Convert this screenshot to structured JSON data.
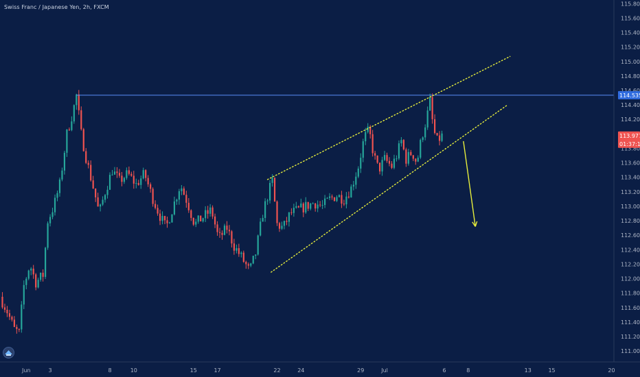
{
  "header": {
    "title": "Swiss Franc / Japanese Yen, 2h, FXCM"
  },
  "colors": {
    "background": "#0b1e45",
    "bull": "#26a69a",
    "bear": "#ef5350",
    "resistance": "#5b8ff9",
    "trendline": "#e8ef3c",
    "arrow": "#e8ef3c",
    "price_tag": "#ef5350",
    "level_tag": "#2f6bde"
  },
  "icons": {
    "logo": "tradingview-logo-icon"
  },
  "chart_data": {
    "type": "candlestick",
    "ylim": [
      110.85,
      115.85
    ],
    "grid": false,
    "y_ticks": [
      "115.800",
      "115.600",
      "115.400",
      "115.200",
      "115.000",
      "114.800",
      "114.600",
      "114.400",
      "114.200",
      "114.000",
      "113.800",
      "113.600",
      "113.400",
      "113.200",
      "113.000",
      "112.800",
      "112.600",
      "112.400",
      "112.200",
      "112.000",
      "111.800",
      "111.600",
      "111.400",
      "111.200",
      "111.000"
    ],
    "x_ticks": [
      {
        "label": "Jun",
        "day": 1
      },
      {
        "label": "3",
        "day": 3
      },
      {
        "label": "8",
        "day": 8
      },
      {
        "label": "10",
        "day": 10
      },
      {
        "label": "15",
        "day": 15
      },
      {
        "label": "17",
        "day": 17
      },
      {
        "label": "22",
        "day": 22
      },
      {
        "label": "24",
        "day": 24
      },
      {
        "label": "29",
        "day": 29
      },
      {
        "label": "Jul",
        "day": 31
      },
      {
        "label": "6",
        "day": 36
      },
      {
        "label": "8",
        "day": 38
      },
      {
        "label": "13",
        "day": 43
      },
      {
        "label": "15",
        "day": 45
      },
      {
        "label": "20",
        "day": 50
      }
    ],
    "x_range_days": [
      -1.2,
      50.2
    ],
    "price_path": [
      [
        -1.2,
        111.75
      ],
      [
        -0.6,
        111.55
      ],
      [
        0.0,
        111.3
      ],
      [
        0.4,
        111.25
      ],
      [
        0.8,
        111.9
      ],
      [
        1.3,
        112.2
      ],
      [
        1.8,
        111.95
      ],
      [
        2.4,
        112.05
      ],
      [
        2.8,
        112.8
      ],
      [
        3.3,
        113.0
      ],
      [
        3.8,
        113.3
      ],
      [
        4.4,
        114.0
      ],
      [
        4.9,
        114.3
      ],
      [
        5.2,
        114.53
      ],
      [
        5.6,
        114.0
      ],
      [
        6.1,
        113.6
      ],
      [
        6.7,
        113.2
      ],
      [
        7.1,
        112.9
      ],
      [
        7.6,
        113.2
      ],
      [
        8.2,
        113.5
      ],
      [
        8.8,
        113.35
      ],
      [
        9.5,
        113.45
      ],
      [
        10.2,
        113.3
      ],
      [
        10.9,
        113.45
      ],
      [
        11.5,
        113.15
      ],
      [
        12.1,
        112.9
      ],
      [
        12.7,
        112.7
      ],
      [
        13.3,
        113.0
      ],
      [
        13.9,
        113.3
      ],
      [
        14.5,
        113.05
      ],
      [
        15.1,
        112.75
      ],
      [
        15.8,
        112.85
      ],
      [
        16.5,
        112.95
      ],
      [
        17.1,
        112.55
      ],
      [
        17.8,
        112.7
      ],
      [
        18.4,
        112.45
      ],
      [
        19.0,
        112.3
      ],
      [
        19.7,
        112.1
      ],
      [
        20.2,
        112.35
      ],
      [
        20.8,
        112.9
      ],
      [
        21.3,
        113.2
      ],
      [
        21.6,
        113.35
      ],
      [
        22.0,
        112.75
      ],
      [
        22.5,
        112.7
      ],
      [
        23.1,
        112.9
      ],
      [
        23.8,
        112.95
      ],
      [
        24.4,
        113.0
      ],
      [
        25.1,
        113.05
      ],
      [
        25.8,
        113.0
      ],
      [
        26.4,
        113.1
      ],
      [
        27.0,
        113.15
      ],
      [
        27.6,
        113.1
      ],
      [
        28.2,
        113.25
      ],
      [
        28.8,
        113.55
      ],
      [
        29.3,
        113.95
      ],
      [
        29.7,
        114.05
      ],
      [
        30.1,
        113.7
      ],
      [
        30.5,
        113.5
      ],
      [
        31.0,
        113.65
      ],
      [
        31.6,
        113.55
      ],
      [
        32.0,
        113.7
      ],
      [
        32.4,
        113.9
      ],
      [
        32.8,
        113.65
      ],
      [
        33.3,
        113.75
      ],
      [
        33.7,
        113.6
      ],
      [
        34.1,
        113.95
      ],
      [
        34.5,
        114.2
      ],
      [
        34.8,
        114.45
      ],
      [
        35.1,
        114.05
      ],
      [
        35.4,
        113.9
      ],
      [
        35.8,
        113.97
      ]
    ],
    "annotations": {
      "resistance_level": 114.535,
      "resistance_start_day": 5.2,
      "upper_trendline": [
        [
          21.2,
          113.37
        ],
        [
          41.5,
          115.07
        ]
      ],
      "lower_trendline": [
        [
          21.5,
          112.09
        ],
        [
          41.2,
          114.39
        ]
      ],
      "forecast_arrow": [
        [
          37.6,
          113.9
        ],
        [
          38.6,
          112.72
        ]
      ]
    },
    "price_tags": {
      "resistance_label": "114.535",
      "last_price": 113.977,
      "last_price_label": "113.977",
      "countdown": "01:37:10"
    }
  }
}
